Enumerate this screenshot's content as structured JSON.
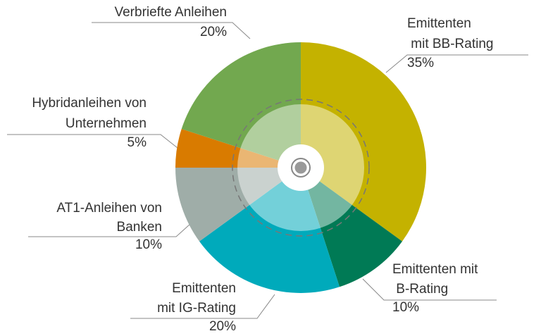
{
  "chart_data": {
    "type": "pie",
    "categories": [
      "Emittenten mit BB-Rating",
      "Emittenten mit B-Rating",
      "Emittenten mit IG-Rating",
      "AT1-Anleihen von Banken",
      "Hybridanleihen von Unternehmen",
      "Verbriefte Anleihen"
    ],
    "values": [
      35,
      10,
      20,
      10,
      5,
      20
    ],
    "value_labels": [
      "35%",
      "10%",
      "20%",
      "10%",
      "5%",
      "20%"
    ],
    "colors": [
      "#c4b200",
      "#007a55",
      "#00aabb",
      "#9fada8",
      "#d97b00",
      "#72a84f"
    ]
  }
}
